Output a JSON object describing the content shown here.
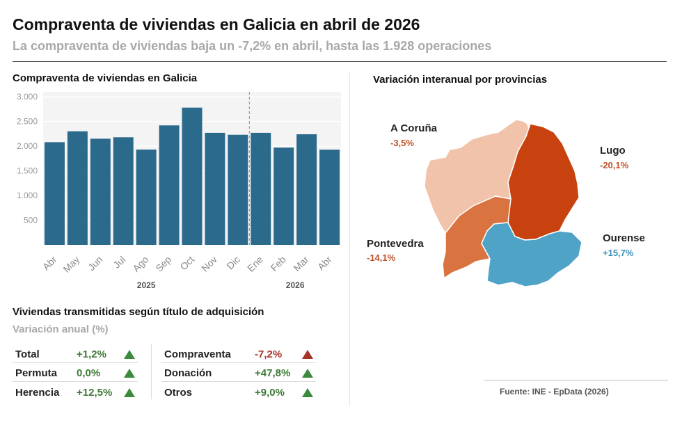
{
  "header": {
    "title": "Compraventa de viviendas en Galicia en abril de 2026",
    "subtitle": "La compraventa de viviendas baja un -7,2% en abril, hasta las 1.928 operaciones"
  },
  "chart_data": [
    {
      "type": "bar",
      "title": "Compraventa de viviendas en Galicia",
      "categories": [
        "Abr",
        "May",
        "Jun",
        "Jul",
        "Ago",
        "Sep",
        "Oct",
        "Nov",
        "Dic",
        "Ene",
        "Feb",
        "Mar",
        "Abr"
      ],
      "values": [
        2080,
        2300,
        2150,
        2180,
        1930,
        2420,
        2780,
        2270,
        2230,
        2270,
        1970,
        2240,
        1928
      ],
      "year_groups": [
        {
          "label": "2025",
          "from": 0,
          "to": 8
        },
        {
          "label": "2026",
          "from": 9,
          "to": 12
        }
      ],
      "y_ticks": [
        500,
        1000,
        1500,
        2000,
        2500,
        3000
      ],
      "y_tick_labels": [
        "500",
        "1.000",
        "1.500",
        "2.000",
        "2.500",
        "3.000"
      ],
      "ylim": [
        0,
        3100
      ],
      "grid": true,
      "bar_color": "#2c6a8c",
      "divider_after_index": 8
    },
    {
      "type": "table",
      "title": "Viviendas transmitidas según título de adquisición",
      "subtitle": "Variación anual (%)",
      "left": [
        {
          "label": "Total",
          "value": "+1,2%",
          "direction": "up"
        },
        {
          "label": "Permuta",
          "value": "0,0%",
          "direction": "up"
        },
        {
          "label": "Herencia",
          "value": "+12,5%",
          "direction": "up"
        }
      ],
      "right": [
        {
          "label": "Compraventa",
          "value": "-7,2%",
          "direction": "down"
        },
        {
          "label": "Donación",
          "value": "+47,8%",
          "direction": "up"
        },
        {
          "label": "Otros",
          "value": "+9,0%",
          "direction": "up"
        }
      ],
      "colors": {
        "up_text": "#3d7a35",
        "up_icon": "#3d8a3d",
        "down_text": "#a63228",
        "down_icon": "#a63228"
      }
    },
    {
      "type": "choropleth",
      "title": "Variación interanual por provincias",
      "regions": [
        {
          "name": "A Coruña",
          "value": "-3,5%",
          "color": "#f2c3ab",
          "value_color": "#c0522a"
        },
        {
          "name": "Lugo",
          "value": "-20,1%",
          "color": "#c84210",
          "value_color": "#c0522a"
        },
        {
          "name": "Pontevedra",
          "value": "-14,1%",
          "color": "#d9733f",
          "value_color": "#c0522a"
        },
        {
          "name": "Ourense",
          "value": "+15,7%",
          "color": "#4fa3c7",
          "value_color": "#3b8fb5"
        }
      ]
    }
  ],
  "source": "Fuente: INE - EpData (2026)"
}
